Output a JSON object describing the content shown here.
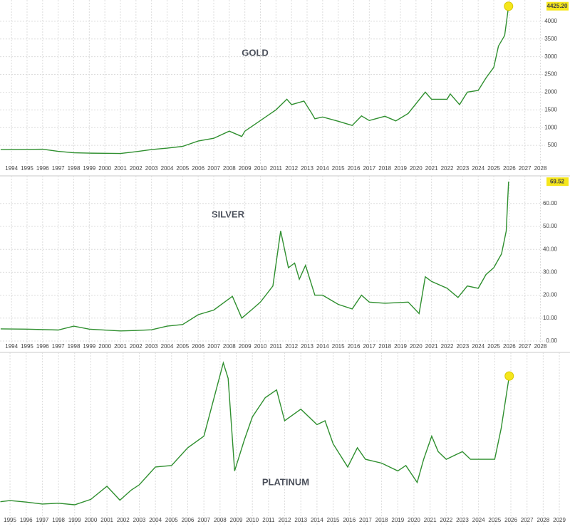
{
  "chart_data": [
    {
      "type": "line",
      "title": "GOLD",
      "color": "#2f8f2f",
      "grid": true,
      "highlight_last": "circle",
      "last_value_label": "4425.20",
      "xlim": [
        1993.26,
        2029.9
      ],
      "ylim": [
        0,
        4500
      ],
      "xticks": [
        1994,
        1995,
        1996,
        1997,
        1998,
        1999,
        2000,
        2001,
        2002,
        2003,
        2004,
        2005,
        2006,
        2007,
        2008,
        2009,
        2010,
        2011,
        2012,
        2013,
        2014,
        2015,
        2016,
        2017,
        2018,
        2019,
        2020,
        2021,
        2022,
        2023,
        2024,
        2025,
        2026,
        2027,
        2028
      ],
      "yticks": [
        500,
        1000,
        1500,
        2000,
        2500,
        3000,
        3500,
        4000
      ],
      "x": [
        1993.3,
        1995,
        1996,
        1997,
        1998,
        1999,
        2000,
        2001,
        2002,
        2003,
        2004,
        2005,
        2006,
        2007,
        2008,
        2008.8,
        2009,
        2010,
        2011,
        2011.7,
        2012,
        2012.8,
        2013.3,
        2013.5,
        2014,
        2015,
        2015.9,
        2016.5,
        2017,
        2018,
        2018.7,
        2019.5,
        2020.6,
        2021,
        2022,
        2022.2,
        2022.8,
        2023.3,
        2024,
        2024.5,
        2025,
        2025.3,
        2025.7,
        2025.95
      ],
      "values": [
        380,
        385,
        390,
        330,
        290,
        280,
        275,
        270,
        320,
        380,
        420,
        470,
        620,
        700,
        900,
        750,
        900,
        1200,
        1500,
        1800,
        1650,
        1750,
        1400,
        1250,
        1300,
        1180,
        1060,
        1330,
        1200,
        1320,
        1190,
        1400,
        2000,
        1800,
        1800,
        1950,
        1650,
        2000,
        2050,
        2400,
        2700,
        3300,
        3600,
        4425.2
      ]
    },
    {
      "type": "line",
      "title": "SILVER",
      "color": "#2f8f2f",
      "grid": true,
      "highlight_last": "tag",
      "last_value_label": "69.52",
      "xlim": [
        1993.26,
        2029.9
      ],
      "ylim": [
        0,
        70.5
      ],
      "xticks": [
        1994,
        1995,
        1996,
        1997,
        1998,
        1999,
        2000,
        2001,
        2002,
        2003,
        2004,
        2005,
        2006,
        2007,
        2008,
        2009,
        2010,
        2011,
        2012,
        2013,
        2014,
        2015,
        2016,
        2017,
        2018,
        2019,
        2020,
        2021,
        2022,
        2023,
        2024,
        2025,
        2026,
        2027,
        2028
      ],
      "yticks": [
        {
          "value": 0,
          "label": "0.00"
        },
        {
          "value": 10,
          "label": "10.00"
        },
        {
          "value": 20,
          "label": "20.00"
        },
        {
          "value": 30,
          "label": "30.00"
        },
        {
          "value": 40,
          "label": "40.00"
        },
        {
          "value": 50,
          "label": "50.00"
        },
        {
          "value": 60,
          "label": "60.00"
        }
      ],
      "x": [
        1993.3,
        1995,
        1997,
        1998,
        1999,
        2001,
        2002,
        2003,
        2004,
        2005,
        2006,
        2007,
        2008.2,
        2008.8,
        2009.5,
        2010,
        2010.8,
        2011.3,
        2011.8,
        2012.2,
        2012.5,
        2012.9,
        2013.5,
        2014,
        2015,
        2015.9,
        2016.5,
        2017,
        2018,
        2019.5,
        2020.2,
        2020.6,
        2021,
        2022,
        2022.7,
        2023.3,
        2024,
        2024.5,
        2025,
        2025.5,
        2025.8,
        2025.95
      ],
      "values": [
        5.3,
        5.2,
        4.8,
        6.5,
        5.2,
        4.4,
        4.6,
        4.9,
        6.5,
        7.2,
        11.5,
        13.5,
        19.5,
        10,
        14,
        17,
        24,
        48,
        32,
        34,
        27,
        33,
        20,
        20,
        16,
        14,
        20,
        17,
        16.5,
        17,
        12,
        28,
        26,
        23,
        19,
        24,
        23,
        29,
        32,
        38,
        48,
        69.52
      ]
    },
    {
      "type": "line",
      "title": "PLATINUM",
      "color": "#2f8f2f",
      "grid": true,
      "highlight_last": "circle",
      "xlim": [
        1994.38,
        2029.66
      ],
      "ylim": [
        120,
        2290
      ],
      "xticks": [
        1995,
        1996,
        1997,
        1998,
        1999,
        2000,
        2001,
        2002,
        2003,
        2004,
        2005,
        2006,
        2007,
        2008,
        2009,
        2010,
        2011,
        2012,
        2013,
        2014,
        2015,
        2016,
        2017,
        2018,
        2019,
        2020,
        2021,
        2022,
        2023,
        2024,
        2025,
        2026,
        2027,
        2028,
        2029
      ],
      "x": [
        1994.4,
        1995,
        1996,
        1997,
        1998,
        1999,
        2000,
        2001,
        2001.8,
        2002.5,
        2003,
        2004,
        2005,
        2006,
        2007,
        2008.2,
        2008.5,
        2008.9,
        2009.5,
        2010,
        2010.8,
        2011.5,
        2012,
        2013,
        2014,
        2014.5,
        2015,
        2015.9,
        2016.5,
        2017,
        2018,
        2019,
        2019.5,
        2020.2,
        2020.6,
        2021.1,
        2021.5,
        2022,
        2023,
        2023.5,
        2024,
        2025,
        2025.4,
        2025.9
      ],
      "values": [
        400,
        415,
        395,
        370,
        380,
        360,
        430,
        600,
        420,
        550,
        620,
        850,
        870,
        1100,
        1250,
        2200,
        2000,
        800,
        1200,
        1500,
        1750,
        1850,
        1450,
        1600,
        1400,
        1450,
        1150,
        850,
        1100,
        950,
        900,
        800,
        870,
        650,
        950,
        1250,
        1050,
        950,
        1050,
        950,
        950,
        950,
        1350,
        2030
      ]
    }
  ]
}
